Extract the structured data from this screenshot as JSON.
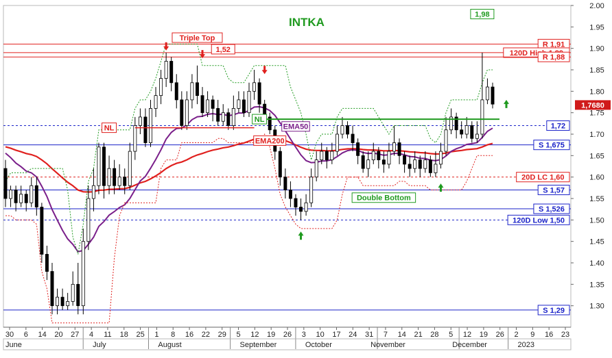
{
  "chart_data": {
    "type": "candlestick",
    "title": "INTKA",
    "ylim": [
      1.25,
      2.0
    ],
    "y_ticks": [
      "2.00",
      "1.95",
      "1.90",
      "1.85",
      "1.80",
      "1.75",
      "1.70",
      "1.65",
      "1.60",
      "1.55",
      "1.50",
      "1.45",
      "1.40",
      "1.35",
      "1.30"
    ],
    "x_day_ticks": [
      "30",
      "6",
      "14",
      "20",
      "27",
      "4",
      "11",
      "18",
      "25",
      "1",
      "8",
      "16",
      "22",
      "29",
      "5",
      "12",
      "19",
      "26",
      "3",
      "10",
      "17",
      "24",
      "31",
      "7",
      "14",
      "21",
      "28",
      "5",
      "12",
      "19",
      "26",
      "2",
      "9",
      "16",
      "23"
    ],
    "x_month_labels": [
      "June",
      "July",
      "August",
      "September",
      "October",
      "November",
      "December",
      "2023"
    ],
    "last_price": "1,7680",
    "levels": [
      {
        "label": "R 1,91",
        "value": 1.91,
        "color": "#e0201e"
      },
      {
        "label": "120D High 1,89",
        "value": 1.89,
        "color": "#e0201e"
      },
      {
        "label": "R 1,88",
        "value": 1.88,
        "color": "#e0201e"
      },
      {
        "label": "1,72",
        "value": 1.72,
        "color": "#1a22c8"
      },
      {
        "label": "S 1,675",
        "value": 1.675,
        "color": "#1a22c8"
      },
      {
        "label": "20D LC 1,60",
        "value": 1.6,
        "color": "#e0201e"
      },
      {
        "label": "S 1,57",
        "value": 1.57,
        "color": "#1a22c8"
      },
      {
        "label": "S 1,526",
        "value": 1.526,
        "color": "#1a22c8"
      },
      {
        "label": "120D Low 1,50",
        "value": 1.5,
        "color": "#1a22c8"
      },
      {
        "label": "S 1,29",
        "value": 1.29,
        "color": "#1a22c8"
      }
    ],
    "annotations": [
      {
        "label": "Triple Top",
        "color": "#e0201e"
      },
      {
        "label": "1,52",
        "color": "#e0201e"
      },
      {
        "label": "1,98",
        "color": "#1f9a1f"
      },
      {
        "label": "NL",
        "color": "#e0201e"
      },
      {
        "label": "NL",
        "color": "#1f9a1f"
      },
      {
        "label": "EMA50",
        "color": "#7a1f8a"
      },
      {
        "label": "EMA200",
        "color": "#e0201e"
      },
      {
        "label": "Double Bottom",
        "color": "#1f9a1f"
      }
    ],
    "series": [
      {
        "name": "EMA50",
        "color": "#7a1f8a"
      },
      {
        "name": "EMA200",
        "color": "#e0201e"
      }
    ],
    "candles": [
      [
        1.62,
        1.55,
        1.64,
        1.53
      ],
      [
        1.55,
        1.57,
        1.58,
        1.53
      ],
      [
        1.57,
        1.54,
        1.58,
        1.52
      ],
      [
        1.54,
        1.56,
        1.58,
        1.53
      ],
      [
        1.56,
        1.54,
        1.57,
        1.52
      ],
      [
        1.54,
        1.58,
        1.6,
        1.53
      ],
      [
        1.58,
        1.53,
        1.6,
        1.51
      ],
      [
        1.53,
        1.42,
        1.54,
        1.4
      ],
      [
        1.42,
        1.38,
        1.44,
        1.36
      ],
      [
        1.38,
        1.3,
        1.4,
        1.28
      ],
      [
        1.3,
        1.32,
        1.34,
        1.28
      ],
      [
        1.32,
        1.3,
        1.34,
        1.29
      ],
      [
        1.3,
        1.31,
        1.33,
        1.29
      ],
      [
        1.31,
        1.35,
        1.38,
        1.3
      ],
      [
        1.35,
        1.3,
        1.4,
        1.28
      ],
      [
        1.3,
        1.45,
        1.48,
        1.28
      ],
      [
        1.45,
        1.55,
        1.58,
        1.43
      ],
      [
        1.55,
        1.58,
        1.62,
        1.52
      ],
      [
        1.58,
        1.67,
        1.68,
        1.56
      ],
      [
        1.67,
        1.58,
        1.68,
        1.55
      ],
      [
        1.58,
        1.62,
        1.65,
        1.56
      ],
      [
        1.62,
        1.58,
        1.64,
        1.56
      ],
      [
        1.58,
        1.6,
        1.63,
        1.57
      ],
      [
        1.6,
        1.58,
        1.62,
        1.56
      ],
      [
        1.58,
        1.66,
        1.68,
        1.57
      ],
      [
        1.66,
        1.72,
        1.74,
        1.64
      ],
      [
        1.72,
        1.74,
        1.76,
        1.7
      ],
      [
        1.74,
        1.68,
        1.76,
        1.67
      ],
      [
        1.68,
        1.76,
        1.78,
        1.67
      ],
      [
        1.76,
        1.79,
        1.81,
        1.74
      ],
      [
        1.79,
        1.83,
        1.85,
        1.77
      ],
      [
        1.83,
        1.87,
        1.89,
        1.81
      ],
      [
        1.87,
        1.82,
        1.88,
        1.8
      ],
      [
        1.82,
        1.78,
        1.84,
        1.76
      ],
      [
        1.78,
        1.72,
        1.8,
        1.71
      ],
      [
        1.72,
        1.78,
        1.8,
        1.71
      ],
      [
        1.78,
        1.82,
        1.84,
        1.76
      ],
      [
        1.82,
        1.79,
        1.86,
        1.77
      ],
      [
        1.79,
        1.75,
        1.81,
        1.74
      ],
      [
        1.75,
        1.78,
        1.8,
        1.74
      ],
      [
        1.78,
        1.76,
        1.79,
        1.73
      ],
      [
        1.76,
        1.73,
        1.78,
        1.72
      ],
      [
        1.73,
        1.75,
        1.77,
        1.72
      ],
      [
        1.75,
        1.72,
        1.76,
        1.71
      ],
      [
        1.72,
        1.76,
        1.79,
        1.71
      ],
      [
        1.76,
        1.78,
        1.8,
        1.75
      ],
      [
        1.78,
        1.75,
        1.8,
        1.74
      ],
      [
        1.75,
        1.8,
        1.82,
        1.74
      ],
      [
        1.8,
        1.82,
        1.85,
        1.78
      ],
      [
        1.82,
        1.77,
        1.83,
        1.75
      ],
      [
        1.77,
        1.74,
        1.78,
        1.73
      ],
      [
        1.74,
        1.71,
        1.75,
        1.7
      ],
      [
        1.71,
        1.66,
        1.72,
        1.64
      ],
      [
        1.66,
        1.6,
        1.67,
        1.58
      ],
      [
        1.6,
        1.57,
        1.62,
        1.55
      ],
      [
        1.57,
        1.55,
        1.59,
        1.53
      ],
      [
        1.55,
        1.53,
        1.56,
        1.51
      ],
      [
        1.53,
        1.52,
        1.55,
        1.5
      ],
      [
        1.52,
        1.54,
        1.56,
        1.51
      ],
      [
        1.54,
        1.6,
        1.62,
        1.53
      ],
      [
        1.6,
        1.64,
        1.66,
        1.59
      ],
      [
        1.64,
        1.66,
        1.68,
        1.63
      ],
      [
        1.66,
        1.64,
        1.67,
        1.62
      ],
      [
        1.64,
        1.66,
        1.68,
        1.63
      ],
      [
        1.66,
        1.7,
        1.72,
        1.65
      ],
      [
        1.7,
        1.72,
        1.74,
        1.69
      ],
      [
        1.72,
        1.7,
        1.73,
        1.69
      ],
      [
        1.7,
        1.68,
        1.72,
        1.66
      ],
      [
        1.68,
        1.65,
        1.69,
        1.63
      ],
      [
        1.65,
        1.62,
        1.66,
        1.61
      ],
      [
        1.62,
        1.64,
        1.66,
        1.6
      ],
      [
        1.64,
        1.66,
        1.68,
        1.63
      ],
      [
        1.66,
        1.64,
        1.67,
        1.62
      ],
      [
        1.64,
        1.63,
        1.66,
        1.61
      ],
      [
        1.63,
        1.66,
        1.68,
        1.62
      ],
      [
        1.66,
        1.68,
        1.72,
        1.65
      ],
      [
        1.68,
        1.65,
        1.69,
        1.63
      ],
      [
        1.65,
        1.63,
        1.66,
        1.61
      ],
      [
        1.63,
        1.62,
        1.65,
        1.6
      ],
      [
        1.62,
        1.64,
        1.66,
        1.61
      ],
      [
        1.64,
        1.62,
        1.65,
        1.6
      ],
      [
        1.62,
        1.64,
        1.66,
        1.61
      ],
      [
        1.64,
        1.61,
        1.65,
        1.6
      ],
      [
        1.61,
        1.63,
        1.66,
        1.6
      ],
      [
        1.63,
        1.66,
        1.68,
        1.62
      ],
      [
        1.66,
        1.71,
        1.74,
        1.65
      ],
      [
        1.71,
        1.74,
        1.76,
        1.7
      ],
      [
        1.74,
        1.71,
        1.75,
        1.69
      ],
      [
        1.71,
        1.7,
        1.73,
        1.69
      ],
      [
        1.7,
        1.72,
        1.74,
        1.69
      ],
      [
        1.72,
        1.69,
        1.73,
        1.68
      ],
      [
        1.69,
        1.7,
        1.73,
        1.68
      ],
      [
        1.7,
        1.78,
        1.89,
        1.69
      ],
      [
        1.78,
        1.81,
        1.83,
        1.77
      ],
      [
        1.81,
        1.77,
        1.82,
        1.76
      ]
    ]
  }
}
